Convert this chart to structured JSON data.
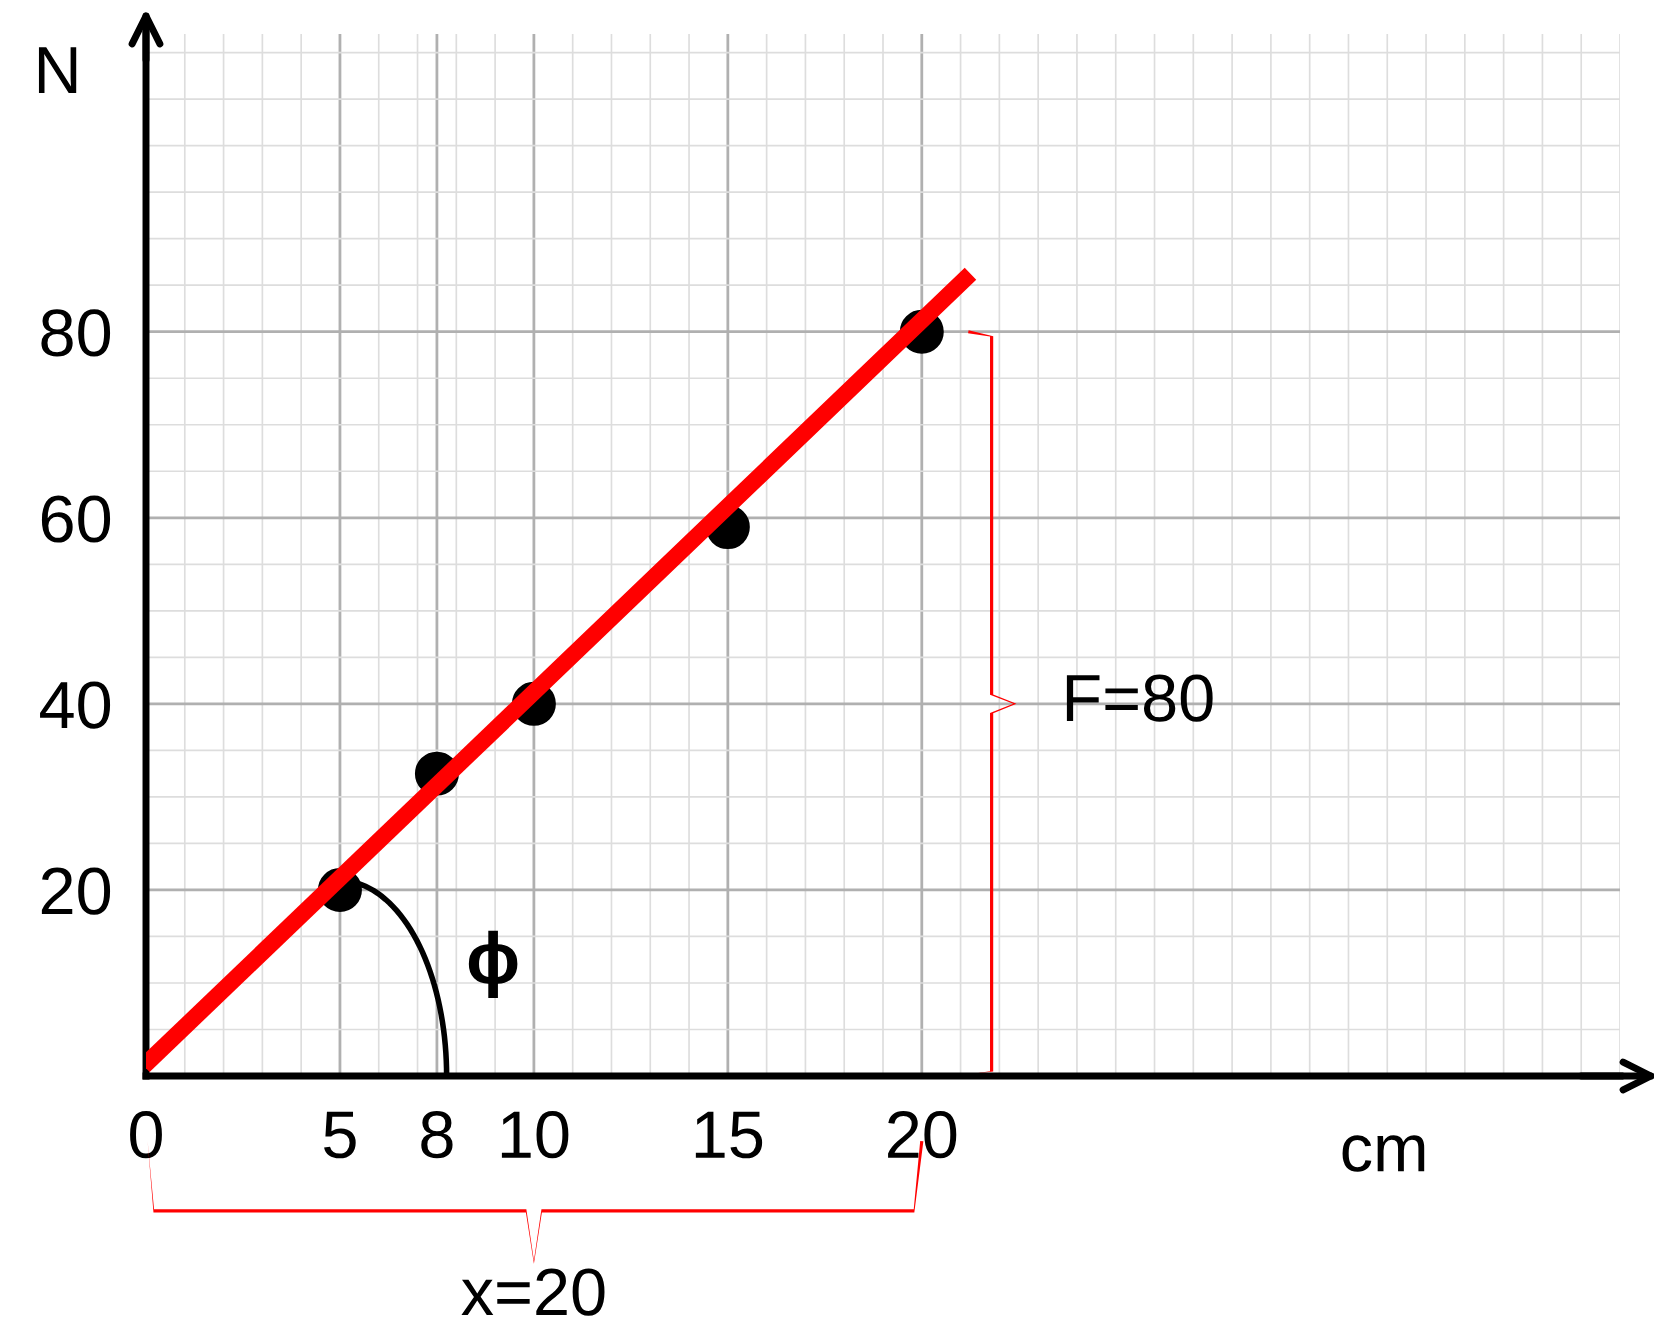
{
  "chart_data": {
    "type": "scatter",
    "xlabel": "cm",
    "ylabel": "N",
    "xlim": [
      0,
      38
    ],
    "ylim": [
      0,
      112
    ],
    "xticks": [
      0,
      5,
      {
        "value": 7.5,
        "label": "8"
      },
      10,
      15,
      20
    ],
    "yticks": [
      {
        "value": 0,
        "label": null
      },
      20,
      40,
      60,
      80
    ],
    "grid": true,
    "marker": "circle",
    "series": [
      {
        "color": "#000000",
        "x": [
          5,
          7.5,
          10,
          15,
          20
        ],
        "values": [
          20,
          32.5,
          40,
          59,
          80
        ]
      },
      {
        "type": "line",
        "color": "#ff0000",
        "x": [
          0.1,
          21.1
        ],
        "values": [
          1.7,
          85.6
        ],
        "marker": "none",
        "line_style": "solid"
      }
    ],
    "annotations": [
      "F=80",
      "x=20",
      "ϕ"
    ]
  }
}
